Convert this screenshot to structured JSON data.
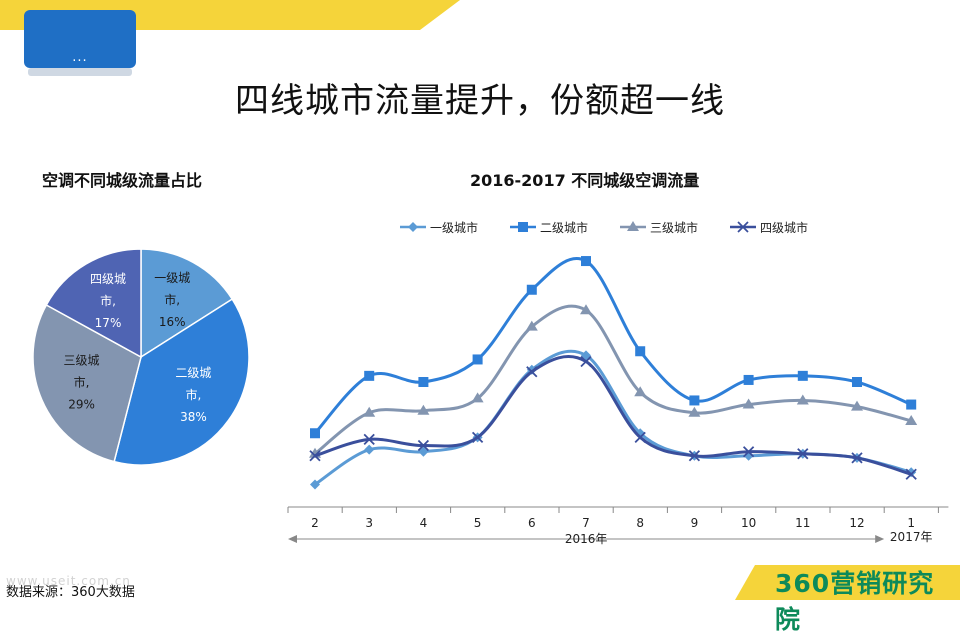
{
  "header": {
    "title": "四线城市流量提升，份额超一线",
    "device_dots": "...",
    "stripe_color": "#f5d43a",
    "device_color": "#1f6fc5"
  },
  "footer": {
    "source": "数据来源：360大数据",
    "watermark": "www.useit.com.cn",
    "brand_number": "360",
    "brand_text": "营销研究院",
    "brand_bar_color": "#f5d43a",
    "brand_text_color": "#0d8a5a"
  },
  "chart_data": [
    {
      "type": "pie",
      "title": "空调不同城级流量占比",
      "slices": [
        {
          "label": "一级城市",
          "value": 16,
          "color": "#5b9bd5"
        },
        {
          "label": "二级城市",
          "value": 38,
          "color": "#2e7fd8"
        },
        {
          "label": "三级城市",
          "value": 29,
          "color": "#8395b0"
        },
        {
          "label": "四级城市",
          "value": 17,
          "color": "#4f64b3"
        }
      ],
      "label_lines": [
        [
          "一级城",
          "市,",
          "16%"
        ],
        [
          "二级城",
          "市,",
          "38%"
        ],
        [
          "三级城",
          "市,",
          "29%"
        ],
        [
          "四级城",
          "市,",
          "17%"
        ]
      ]
    },
    {
      "type": "line",
      "title": "2016-2017 不同城级空调流量",
      "categories": [
        "2",
        "3",
        "4",
        "5",
        "6",
        "7",
        "8",
        "9",
        "10",
        "11",
        "12",
        "1"
      ],
      "year_labels": [
        "2016年",
        "2017年"
      ],
      "legend_position": "top",
      "ylim": [
        0,
        100
      ],
      "series": [
        {
          "name": "一级城市",
          "marker": "diamond",
          "color": "#5b9bd5",
          "values": [
            10,
            27,
            26,
            33,
            66,
            73,
            35,
            24,
            24,
            25,
            23,
            16
          ]
        },
        {
          "name": "二级城市",
          "marker": "square",
          "color": "#2e7fd8",
          "values": [
            35,
            63,
            60,
            71,
            105,
            119,
            75,
            51,
            61,
            63,
            60,
            49
          ]
        },
        {
          "name": "三级城市",
          "marker": "triangle",
          "color": "#8395b0",
          "values": [
            25,
            45,
            46,
            52,
            87,
            95,
            55,
            45,
            49,
            51,
            48,
            41
          ]
        },
        {
          "name": "四级城市",
          "marker": "x",
          "color": "#3a4f9c",
          "values": [
            24,
            32,
            29,
            33,
            65,
            70,
            33,
            24,
            26,
            25,
            23,
            15
          ]
        }
      ]
    }
  ]
}
